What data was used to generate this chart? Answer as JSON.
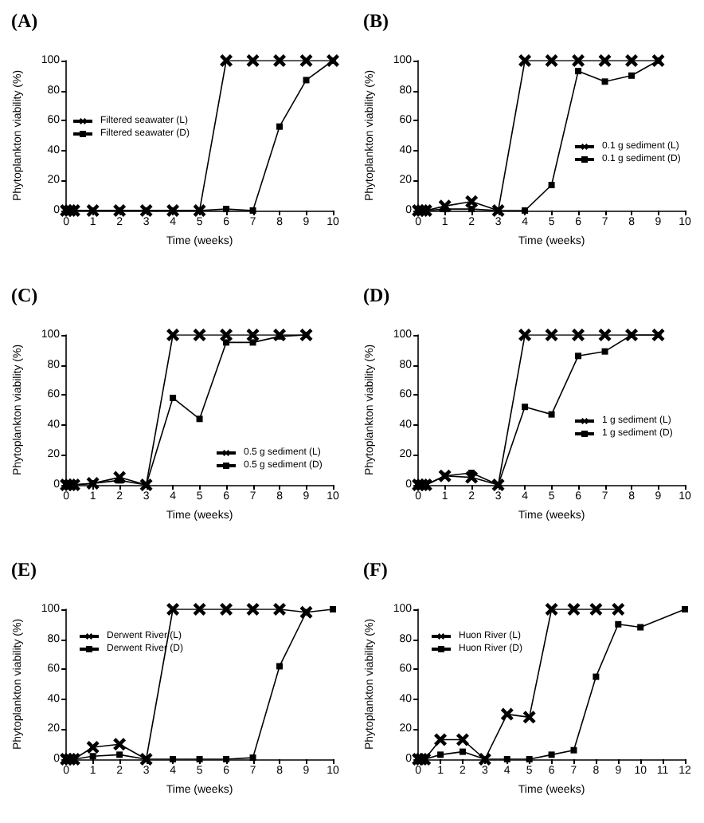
{
  "chart_data": [
    {
      "type": "line",
      "title": "(A)",
      "xlabel": "Time (weeks)",
      "ylabel": "Phytoplankton viability (%)",
      "xlim": [
        0,
        10
      ],
      "xticks": [
        0,
        1,
        2,
        3,
        4,
        5,
        6,
        7,
        8,
        9,
        10
      ],
      "ylim": [
        0,
        100
      ],
      "yticks": [
        0,
        20,
        40,
        60,
        80,
        100
      ],
      "legend": "left",
      "series": [
        {
          "name": "Filtered seawater (L)",
          "color": "#000000",
          "marker": "cross",
          "x": [
            0,
            0.14,
            0.29,
            1,
            2,
            3,
            4,
            5,
            6,
            7,
            8,
            9,
            10
          ],
          "values": [
            0,
            0,
            0,
            0,
            0,
            0,
            0,
            0,
            100,
            100,
            100,
            100,
            100
          ]
        },
        {
          "name": "Filtered seawater (D)",
          "color": "#000000",
          "marker": "square",
          "x": [
            0,
            0.14,
            0.29,
            1,
            2,
            3,
            4,
            5,
            6,
            7,
            8,
            9,
            10
          ],
          "values": [
            0,
            0,
            0,
            0,
            0,
            0,
            0,
            0,
            1,
            0,
            56,
            87,
            100
          ]
        }
      ]
    },
    {
      "type": "line",
      "title": "(B)",
      "xlabel": "Time (weeks)",
      "ylabel": "Phytoplankton viability (%)",
      "xlim": [
        0,
        10
      ],
      "xticks": [
        0,
        1,
        2,
        3,
        4,
        5,
        6,
        7,
        8,
        9,
        10
      ],
      "ylim": [
        0,
        100
      ],
      "yticks": [
        0,
        20,
        40,
        60,
        80,
        100
      ],
      "legend": "right",
      "series": [
        {
          "name": "0.1 g sediment (L)",
          "color": "#000000",
          "marker": "cross",
          "x": [
            0,
            0.14,
            0.29,
            1,
            2,
            3,
            4,
            5,
            6,
            7,
            8,
            9
          ],
          "values": [
            0,
            0,
            0,
            3,
            6,
            0,
            100,
            100,
            100,
            100,
            100,
            100
          ]
        },
        {
          "name": "0.1 g sediment (D)",
          "color": "#000000",
          "marker": "square",
          "x": [
            0,
            0.14,
            0.29,
            1,
            2,
            3,
            4,
            5,
            6,
            7,
            8,
            9
          ],
          "values": [
            0,
            0,
            0,
            1,
            1,
            0,
            0,
            17,
            93,
            86,
            90,
            100
          ]
        }
      ]
    },
    {
      "type": "line",
      "title": "(C)",
      "xlabel": "Time (weeks)",
      "ylabel": "Phytoplankton viability (%)",
      "xlim": [
        0,
        10
      ],
      "xticks": [
        0,
        1,
        2,
        3,
        4,
        5,
        6,
        7,
        8,
        9,
        10
      ],
      "ylim": [
        0,
        100
      ],
      "yticks": [
        0,
        20,
        40,
        60,
        80,
        100
      ],
      "legend": "bottom right",
      "series": [
        {
          "name": "0.5 g sediment (L)",
          "color": "#000000",
          "marker": "cross",
          "x": [
            0,
            0.14,
            0.29,
            1,
            2,
            3,
            4,
            5,
            6,
            7,
            8,
            9
          ],
          "values": [
            0,
            0,
            0,
            1,
            5,
            0,
            100,
            100,
            100,
            100,
            100,
            100
          ]
        },
        {
          "name": "0.5 g sediment (D)",
          "color": "#000000",
          "marker": "square",
          "x": [
            0,
            0.14,
            0.29,
            1,
            2,
            3,
            4,
            5,
            6,
            7,
            8,
            9
          ],
          "values": [
            0,
            0,
            0,
            1,
            3,
            0,
            58,
            44,
            95,
            95,
            99,
            100
          ]
        }
      ]
    },
    {
      "type": "line",
      "title": "(D)",
      "xlabel": "Time (weeks)",
      "ylabel": "Phytoplankton viability (%)",
      "xlim": [
        0,
        10
      ],
      "xticks": [
        0,
        1,
        2,
        3,
        4,
        5,
        6,
        7,
        8,
        9,
        10
      ],
      "ylim": [
        0,
        100
      ],
      "yticks": [
        0,
        20,
        40,
        60,
        80,
        100
      ],
      "legend": "right",
      "series": [
        {
          "name": "1 g sediment (L)",
          "color": "#000000",
          "marker": "cross",
          "x": [
            0,
            0.14,
            0.29,
            1,
            2,
            3,
            4,
            5,
            6,
            7,
            8,
            9
          ],
          "values": [
            0,
            0,
            0,
            6,
            5,
            0,
            100,
            100,
            100,
            100,
            100,
            100
          ]
        },
        {
          "name": "1 g sediment (D)",
          "color": "#000000",
          "marker": "square",
          "x": [
            0,
            0.14,
            0.29,
            1,
            2,
            3,
            4,
            5,
            6,
            7,
            8,
            9
          ],
          "values": [
            0,
            0,
            0,
            6,
            8,
            0,
            52,
            47,
            86,
            89,
            100,
            100
          ]
        }
      ]
    },
    {
      "type": "line",
      "title": "(E)",
      "xlabel": "Time (weeks)",
      "ylabel": "Phytoplankton viability (%)",
      "xlim": [
        0,
        10
      ],
      "xticks": [
        0,
        1,
        2,
        3,
        4,
        5,
        6,
        7,
        8,
        9,
        10
      ],
      "ylim": [
        0,
        100
      ],
      "yticks": [
        0,
        20,
        40,
        60,
        80,
        100
      ],
      "legend": "top left",
      "series": [
        {
          "name": "Derwent River (L)",
          "color": "#000000",
          "marker": "cross",
          "x": [
            0,
            0.14,
            0.29,
            1,
            2,
            3,
            4,
            5,
            6,
            7,
            8,
            9
          ],
          "values": [
            0,
            0,
            0,
            8,
            10,
            0,
            100,
            100,
            100,
            100,
            100,
            98
          ]
        },
        {
          "name": "Derwent River (D)",
          "color": "#000000",
          "marker": "square",
          "x": [
            0,
            0.14,
            0.29,
            1,
            2,
            3,
            4,
            5,
            6,
            7,
            8,
            9,
            10
          ],
          "values": [
            0,
            0,
            0,
            2,
            3,
            0,
            0,
            0,
            0,
            1,
            62,
            98,
            100
          ]
        }
      ]
    },
    {
      "type": "line",
      "title": "(F)",
      "xlabel": "Time (weeks)",
      "ylabel": "Phytoplankton viability (%)",
      "xlim": [
        0,
        12
      ],
      "xticks": [
        0,
        1,
        2,
        3,
        4,
        5,
        6,
        7,
        8,
        9,
        10,
        11,
        12
      ],
      "ylim": [
        0,
        100
      ],
      "yticks": [
        0,
        20,
        40,
        60,
        80,
        100
      ],
      "legend": "top left",
      "series": [
        {
          "name": "Huon River (L)",
          "color": "#000000",
          "marker": "cross",
          "x": [
            0,
            0.14,
            0.29,
            1,
            2,
            3,
            4,
            5,
            6,
            7,
            8,
            9
          ],
          "values": [
            0,
            0,
            0,
            13,
            13,
            0,
            30,
            28,
            100,
            100,
            100,
            100
          ]
        },
        {
          "name": "Huon River (D)",
          "color": "#000000",
          "marker": "square",
          "x": [
            0,
            0.14,
            0.29,
            1,
            2,
            3,
            4,
            5,
            6,
            7,
            8,
            9,
            10,
            12
          ],
          "values": [
            0,
            0,
            0,
            3,
            5,
            0,
            0,
            0,
            3,
            6,
            55,
            90,
            88,
            100
          ]
        }
      ]
    }
  ]
}
